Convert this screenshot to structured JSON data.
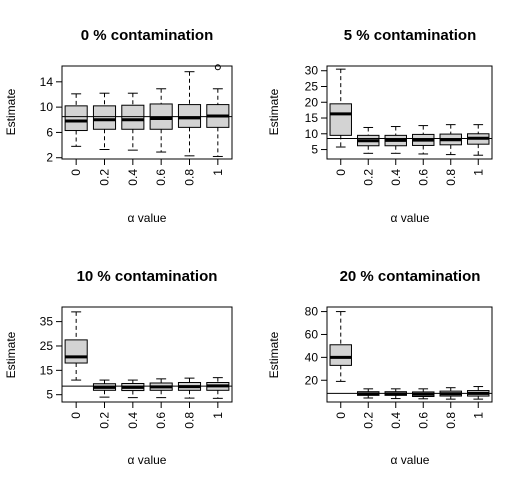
{
  "chart_data": [
    {
      "type": "box",
      "title": "0 % contamination",
      "xlabel": "α value",
      "ylabel": "Estimate",
      "categories": [
        "0",
        "0.2",
        "0.4",
        "0.6",
        "0.8",
        "1"
      ],
      "ylim": [
        1.8,
        16.5
      ],
      "yticks": [
        2,
        6,
        10,
        14
      ],
      "reference_line": 8.5,
      "boxes": [
        {
          "min": 3.8,
          "q1": 6.3,
          "median": 7.8,
          "q3": 10.2,
          "max": 12.1,
          "outliers": []
        },
        {
          "min": 3.3,
          "q1": 6.5,
          "median": 8.0,
          "q3": 10.2,
          "max": 12.2,
          "outliers": []
        },
        {
          "min": 3.2,
          "q1": 6.5,
          "median": 8.0,
          "q3": 10.3,
          "max": 12.2,
          "outliers": []
        },
        {
          "min": 2.9,
          "q1": 6.5,
          "median": 8.2,
          "q3": 10.5,
          "max": 12.9,
          "outliers": []
        },
        {
          "min": 2.3,
          "q1": 6.8,
          "median": 8.3,
          "q3": 10.4,
          "max": 15.6,
          "outliers": []
        },
        {
          "min": 2.2,
          "q1": 6.8,
          "median": 8.6,
          "q3": 10.4,
          "max": 12.9,
          "outliers": [
            16.3
          ]
        }
      ]
    },
    {
      "type": "box",
      "title": "5 % contamination",
      "xlabel": "α value",
      "ylabel": "Estimate",
      "categories": [
        "0",
        "0.2",
        "0.4",
        "0.6",
        "0.8",
        "1"
      ],
      "ylim": [
        2,
        31.5
      ],
      "yticks": [
        5,
        10,
        15,
        20,
        25,
        30
      ],
      "reference_line": 8.5,
      "boxes": [
        {
          "min": 5.8,
          "q1": 9.5,
          "median": 16.3,
          "q3": 19.5,
          "max": 30.5,
          "outliers": []
        },
        {
          "min": 3.8,
          "q1": 6.2,
          "median": 7.8,
          "q3": 9.5,
          "max": 12.0,
          "outliers": []
        },
        {
          "min": 3.8,
          "q1": 6.2,
          "median": 7.9,
          "q3": 9.5,
          "max": 12.3,
          "outliers": []
        },
        {
          "min": 3.6,
          "q1": 6.3,
          "median": 8.0,
          "q3": 9.8,
          "max": 12.6,
          "outliers": []
        },
        {
          "min": 3.4,
          "q1": 6.5,
          "median": 8.1,
          "q3": 9.9,
          "max": 12.9,
          "outliers": []
        },
        {
          "min": 3.2,
          "q1": 6.7,
          "median": 8.6,
          "q3": 10.0,
          "max": 12.9,
          "outliers": []
        }
      ]
    },
    {
      "type": "box",
      "title": "10 % contamination",
      "xlabel": "α value",
      "ylabel": "Estimate",
      "categories": [
        "0",
        "0.2",
        "0.4",
        "0.6",
        "0.8",
        "1"
      ],
      "ylim": [
        2,
        41
      ],
      "yticks": [
        5,
        15,
        25,
        35
      ],
      "reference_line": 8.5,
      "boxes": [
        {
          "min": 11.0,
          "q1": 18.0,
          "median": 20.5,
          "q3": 27.5,
          "max": 39.0,
          "outliers": []
        },
        {
          "min": 4.0,
          "q1": 6.8,
          "median": 8.0,
          "q3": 9.5,
          "max": 11.0,
          "outliers": []
        },
        {
          "min": 3.8,
          "q1": 6.7,
          "median": 8.0,
          "q3": 9.6,
          "max": 11.0,
          "outliers": []
        },
        {
          "min": 3.8,
          "q1": 6.8,
          "median": 8.2,
          "q3": 9.8,
          "max": 11.5,
          "outliers": []
        },
        {
          "min": 3.6,
          "q1": 6.8,
          "median": 8.3,
          "q3": 10.0,
          "max": 11.8,
          "outliers": []
        },
        {
          "min": 3.5,
          "q1": 6.8,
          "median": 8.6,
          "q3": 10.0,
          "max": 12.0,
          "outliers": []
        }
      ]
    },
    {
      "type": "box",
      "title": "20 % contamination",
      "xlabel": "α value",
      "ylabel": "Estimate",
      "categories": [
        "0",
        "0.2",
        "0.4",
        "0.6",
        "0.8",
        "1"
      ],
      "ylim": [
        1,
        84
      ],
      "yticks": [
        20,
        40,
        60,
        80
      ],
      "reference_line": 8.5,
      "boxes": [
        {
          "min": 19.0,
          "q1": 33.0,
          "median": 40.0,
          "q3": 51.0,
          "max": 80.0,
          "outliers": []
        },
        {
          "min": 4.5,
          "q1": 6.8,
          "median": 8.0,
          "q3": 10.0,
          "max": 12.5,
          "outliers": []
        },
        {
          "min": 4.0,
          "q1": 6.8,
          "median": 8.0,
          "q3": 10.0,
          "max": 12.5,
          "outliers": []
        },
        {
          "min": 3.8,
          "q1": 5.8,
          "median": 7.8,
          "q3": 9.8,
          "max": 12.5,
          "outliers": []
        },
        {
          "min": 3.5,
          "q1": 6.2,
          "median": 8.2,
          "q3": 10.5,
          "max": 13.5,
          "outliers": []
        },
        {
          "min": 3.5,
          "q1": 6.2,
          "median": 8.5,
          "q3": 11.0,
          "max": 14.5,
          "outliers": []
        }
      ]
    }
  ],
  "colors": {
    "box_fill": "#d3d3d3",
    "stroke": "#000000",
    "background": "#ffffff"
  }
}
